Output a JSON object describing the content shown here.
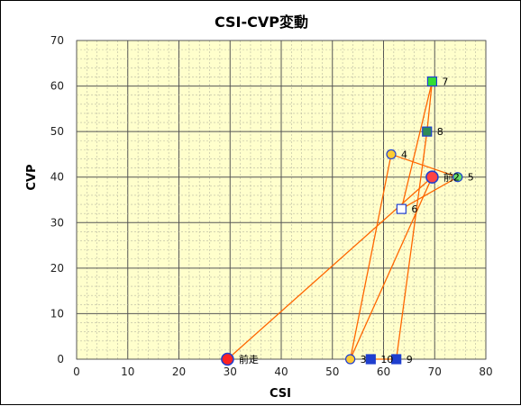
{
  "chart_data": {
    "type": "scatter",
    "title": "CSI-CVP変動",
    "xlabel": "CSI",
    "ylabel": "CVP",
    "xlim": [
      0,
      80
    ],
    "ylim": [
      0,
      70
    ],
    "xticks": [
      0,
      10,
      20,
      30,
      40,
      50,
      60,
      70,
      80
    ],
    "yticks": [
      0,
      10,
      20,
      30,
      40,
      50,
      60,
      70
    ],
    "grid": true,
    "legend": "none",
    "plot_background": "#FFFFCC",
    "line_color": "#FF6600",
    "path_order": [
      "前走",
      "前2",
      "3",
      "4",
      "5",
      "6",
      "7",
      "8",
      "9",
      "10"
    ],
    "points": [
      {
        "label": "前走",
        "x": 29.5,
        "y": 0,
        "marker": "circle-large",
        "fill": "#FF2222",
        "stroke": "#1F3FCF"
      },
      {
        "label": "前2",
        "x": 69.5,
        "y": 40,
        "marker": "circle-large",
        "fill": "#FF4444",
        "stroke": "#1F3FCF"
      },
      {
        "label": "3",
        "x": 53.5,
        "y": 0,
        "marker": "circle",
        "fill": "#FFCC33",
        "stroke": "#1F3FCF"
      },
      {
        "label": "4",
        "x": 61.5,
        "y": 45,
        "marker": "circle",
        "fill": "#FFCC33",
        "stroke": "#1F3FCF"
      },
      {
        "label": "5",
        "x": 74.5,
        "y": 40,
        "marker": "circle",
        "fill": "#66DD66",
        "stroke": "#1F3FCF"
      },
      {
        "label": "6",
        "x": 63.5,
        "y": 33,
        "marker": "square",
        "fill": "#FFFFFF",
        "stroke": "#1F3FCF"
      },
      {
        "label": "7",
        "x": 69.5,
        "y": 61,
        "marker": "square",
        "fill": "#33DD33",
        "stroke": "#1F3FCF"
      },
      {
        "label": "8",
        "x": 68.5,
        "y": 50,
        "marker": "square",
        "fill": "#2E8B57",
        "stroke": "#1F3FCF"
      },
      {
        "label": "9",
        "x": 62.5,
        "y": 0,
        "marker": "square",
        "fill": "#1F3FCF",
        "stroke": "#1F3FCF"
      },
      {
        "label": "10",
        "x": 57.5,
        "y": 0,
        "marker": "square",
        "fill": "#1F3FCF",
        "stroke": "#1F3FCF"
      }
    ]
  }
}
